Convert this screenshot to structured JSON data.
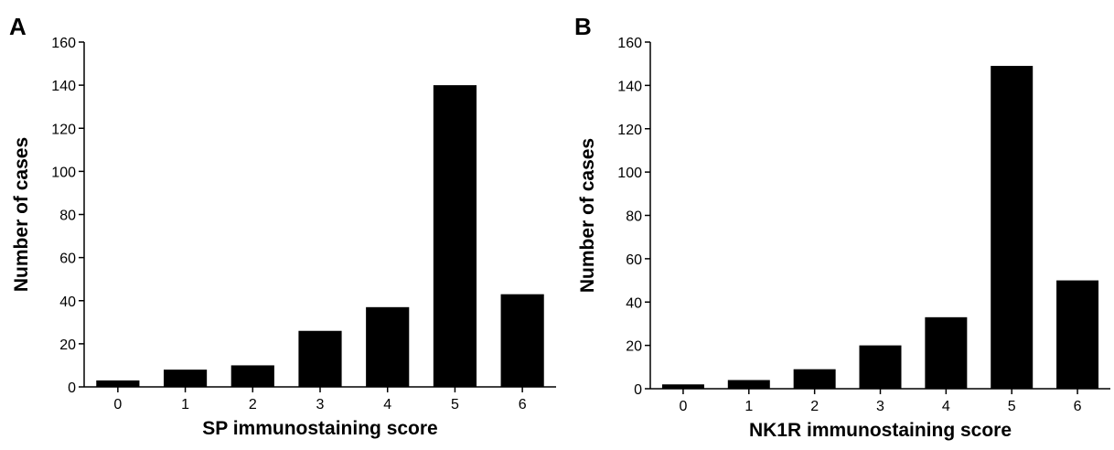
{
  "chart_data": [
    {
      "type": "bar",
      "panel": "A",
      "x_label": "SP immunostaining score",
      "y_label": "Number of cases",
      "categories": [
        "0",
        "1",
        "2",
        "3",
        "4",
        "5",
        "6"
      ],
      "values": [
        3,
        8,
        10,
        26,
        37,
        140,
        43
      ],
      "color": "#000000",
      "ylim": [
        0,
        160
      ],
      "yticks": [
        0,
        20,
        40,
        60,
        80,
        100,
        120,
        140,
        160
      ],
      "grid": false
    },
    {
      "type": "bar",
      "panel": "B",
      "x_label": "NK1R immunostaining score",
      "y_label": "Number of cases",
      "categories": [
        "0",
        "1",
        "2",
        "3",
        "4",
        "5",
        "6"
      ],
      "values": [
        2,
        4,
        9,
        20,
        33,
        149,
        50
      ],
      "color": "#000000",
      "ylim": [
        0,
        160
      ],
      "yticks": [
        0,
        20,
        40,
        60,
        80,
        100,
        120,
        140,
        160
      ],
      "grid": false
    }
  ]
}
